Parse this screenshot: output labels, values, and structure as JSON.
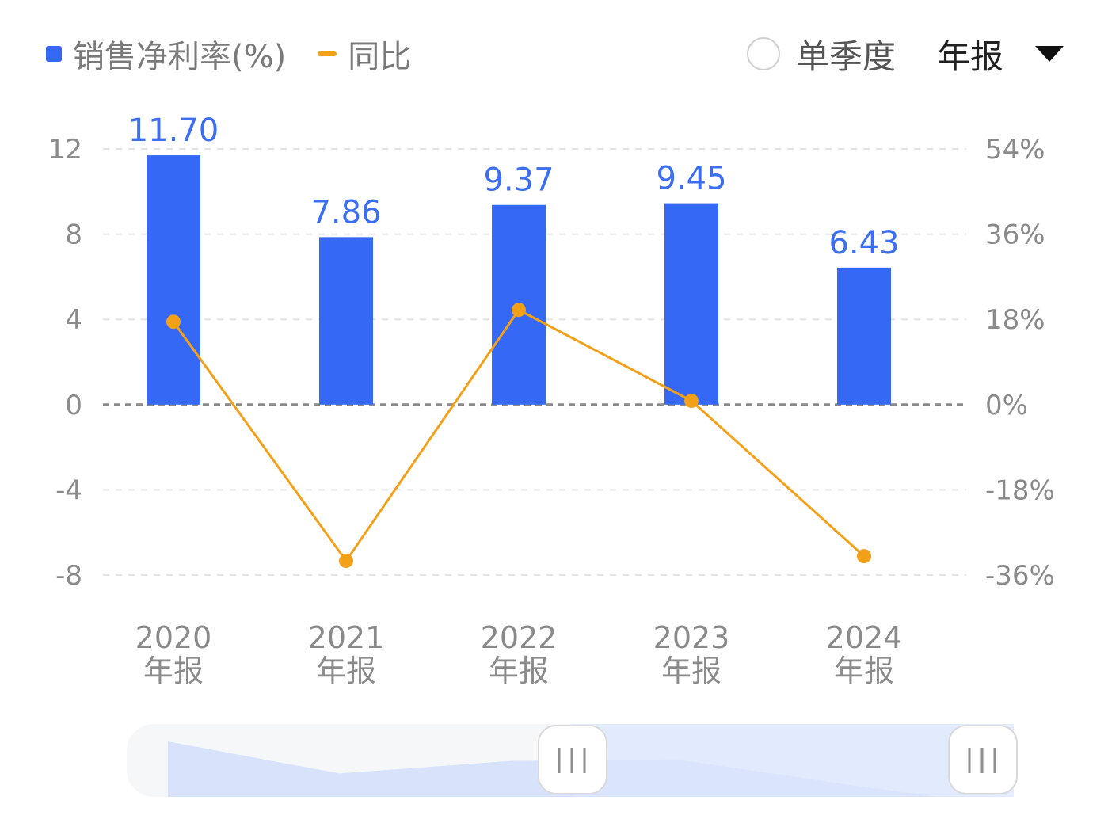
{
  "legend": {
    "bar_label": "销售净利率(%)",
    "line_label": "同比"
  },
  "controls": {
    "single_quarter_label": "单季度",
    "period_label": "年报"
  },
  "colors": {
    "bar": "#3568f5",
    "line": "#f3a019",
    "grid": "#e3e3e3",
    "zero": "#8a8a8a",
    "slider_fill": "#d8e3fb"
  },
  "chart_data": {
    "type": "bar",
    "categories": [
      {
        "year": "2020",
        "period": "年报"
      },
      {
        "year": "2021",
        "period": "年报"
      },
      {
        "year": "2022",
        "period": "年报"
      },
      {
        "year": "2023",
        "period": "年报"
      },
      {
        "year": "2024",
        "period": "年报"
      }
    ],
    "series": [
      {
        "name": "销售净利率(%)",
        "type": "bar",
        "axis": "left",
        "values": [
          11.7,
          7.86,
          9.37,
          9.45,
          6.43
        ],
        "labels": [
          "11.70",
          "7.86",
          "9.37",
          "9.45",
          "6.43"
        ]
      },
      {
        "name": "同比",
        "type": "line",
        "axis": "right",
        "values": [
          17.5,
          -33.0,
          20.0,
          0.8,
          -32.0
        ]
      }
    ],
    "left_axis": {
      "ylim": [
        -8,
        12
      ],
      "ticks": [
        "12",
        "8",
        "4",
        "0",
        "-4",
        "-8"
      ],
      "tick_values": [
        12,
        8,
        4,
        0,
        -4,
        -8
      ]
    },
    "right_axis": {
      "ylim": [
        -36,
        54
      ],
      "ticks": [
        "54%",
        "36%",
        "18%",
        "0%",
        "-18%",
        "-36%"
      ],
      "tick_values": [
        54,
        36,
        18,
        0,
        -18,
        -36
      ]
    },
    "grid": true,
    "legend_position": "top-left"
  },
  "slider": {
    "range_start": 0.5,
    "range_end": 1.0
  }
}
